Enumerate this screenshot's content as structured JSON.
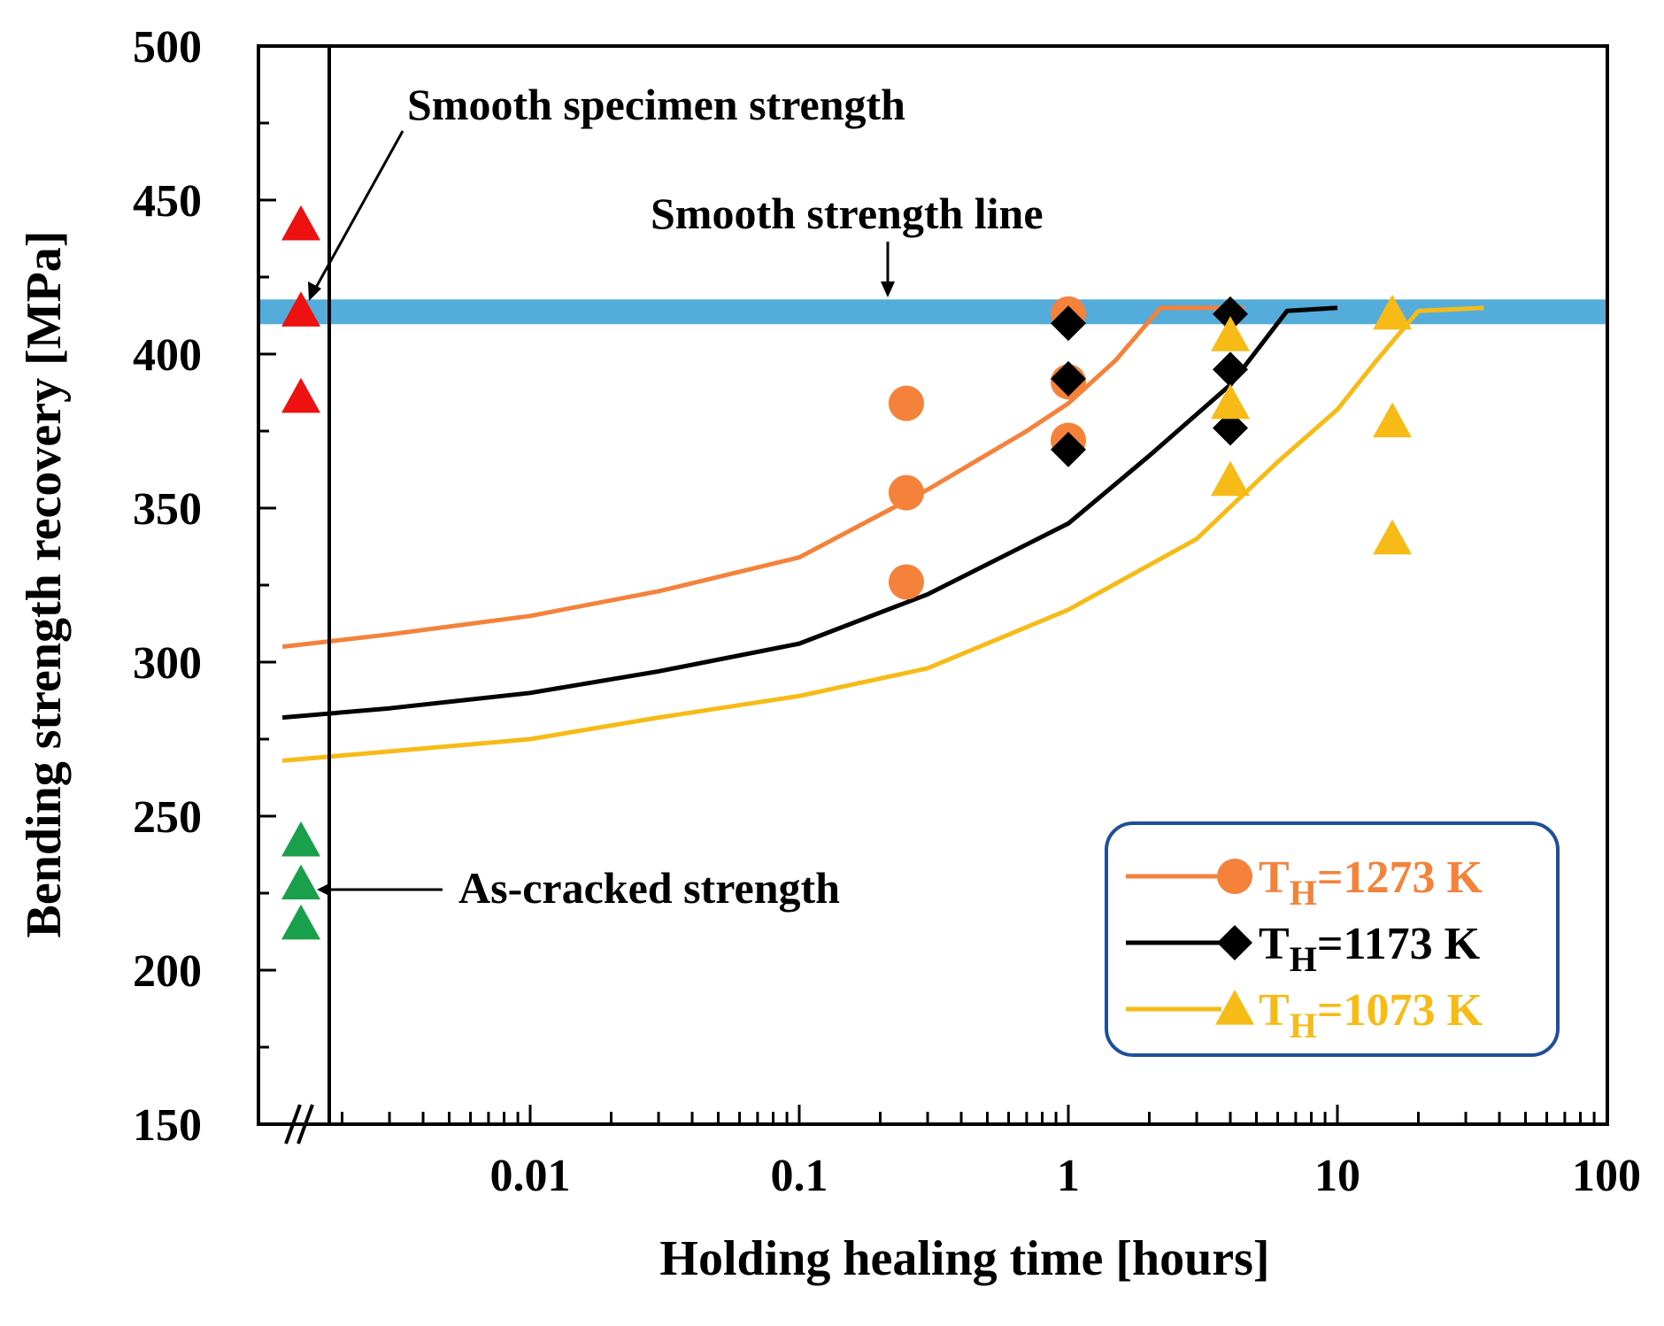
{
  "chart_data": {
    "type": "scatter",
    "xlabel": "Holding healing time [hours]",
    "ylabel": "Bending strength recovery [MPa]",
    "xscale": "log",
    "xlim": [
      0.001,
      100
    ],
    "ylim": [
      150,
      500
    ],
    "x_tick_labels": [
      "0.01",
      "0.1",
      "1",
      "10",
      "100"
    ],
    "x_tick_values": [
      0.01,
      0.1,
      1,
      10,
      100
    ],
    "y_ticks": [
      150,
      200,
      250,
      300,
      350,
      400,
      450,
      500
    ],
    "grid": false,
    "legend_position": "bottom-right",
    "smooth_strength_line": {
      "label": "Smooth strength line",
      "value": 414,
      "color": "#4aa8d8"
    },
    "annotations": {
      "smooth_specimen": "Smooth specimen strength",
      "as_cracked": "As-cracked strength"
    },
    "reference_points": {
      "smooth_specimen": {
        "values": [
          442,
          414,
          386
        ],
        "color": "#ee1111"
      },
      "as_cracked": {
        "values": [
          242,
          228,
          215
        ],
        "color": "#1aa04a"
      }
    },
    "series": [
      {
        "name": "T",
        "subscript": "H",
        "suffix": "=1273 K",
        "color": "#f4823a",
        "marker": "circle",
        "points": [
          [
            0.25,
            384
          ],
          [
            0.25,
            355
          ],
          [
            0.25,
            326
          ],
          [
            1,
            413
          ],
          [
            1,
            391
          ],
          [
            1,
            372
          ]
        ],
        "fit": [
          [
            0.0012,
            305
          ],
          [
            0.003,
            309
          ],
          [
            0.01,
            315
          ],
          [
            0.03,
            323
          ],
          [
            0.1,
            334
          ],
          [
            0.3,
            356
          ],
          [
            0.7,
            375
          ],
          [
            1.0,
            384
          ],
          [
            1.5,
            398
          ],
          [
            2.2,
            415
          ],
          [
            4.5,
            415
          ]
        ]
      },
      {
        "name": "T",
        "subscript": "H",
        "suffix": "=1173 K",
        "color": "#000000",
        "marker": "diamond",
        "points": [
          [
            1,
            410
          ],
          [
            1,
            392
          ],
          [
            1,
            369
          ],
          [
            4,
            413
          ],
          [
            4,
            395
          ],
          [
            4,
            376
          ]
        ],
        "fit": [
          [
            0.0012,
            282
          ],
          [
            0.003,
            285
          ],
          [
            0.01,
            290
          ],
          [
            0.03,
            297
          ],
          [
            0.1,
            306
          ],
          [
            0.3,
            322
          ],
          [
            1.0,
            345
          ],
          [
            2.0,
            367
          ],
          [
            4.0,
            390
          ],
          [
            6.5,
            414
          ],
          [
            10,
            415
          ]
        ]
      },
      {
        "name": "T",
        "subscript": "H",
        "suffix": "=1073 K",
        "color": "#f7bb17",
        "marker": "triangle",
        "points": [
          [
            4,
            406
          ],
          [
            4,
            384
          ],
          [
            4,
            359
          ],
          [
            16,
            413
          ],
          [
            16,
            378
          ],
          [
            16,
            340
          ]
        ],
        "fit": [
          [
            0.0012,
            268
          ],
          [
            0.003,
            271
          ],
          [
            0.01,
            275
          ],
          [
            0.03,
            282
          ],
          [
            0.1,
            289
          ],
          [
            0.3,
            298
          ],
          [
            1.0,
            317
          ],
          [
            3.0,
            340
          ],
          [
            6.0,
            365
          ],
          [
            10,
            382
          ],
          [
            14,
            398
          ],
          [
            20,
            414
          ],
          [
            35,
            415
          ]
        ]
      }
    ]
  }
}
